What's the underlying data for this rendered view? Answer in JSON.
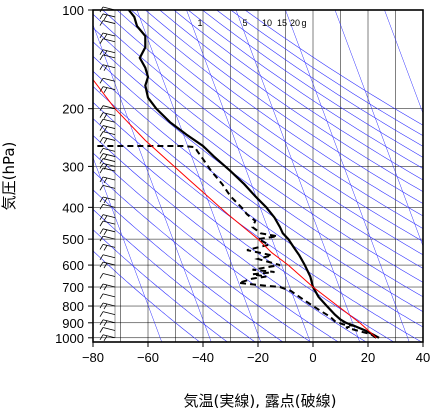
{
  "chart_data": {
    "type": "line",
    "title": "",
    "xlabel": "気温(実線), 露点(破線)",
    "ylabel": "気圧(hPa)",
    "xlim": [
      -80,
      40
    ],
    "ylim": [
      1030,
      100
    ],
    "y_scale": "log",
    "x_ticks": [
      -80,
      -60,
      -40,
      -20,
      0,
      20,
      40
    ],
    "x_tick_labels": [
      "−80",
      "−60",
      "−40",
      "−20",
      "0",
      "20",
      "40"
    ],
    "y_ticks": [
      100,
      200,
      300,
      400,
      500,
      600,
      700,
      800,
      900,
      1000
    ],
    "y_tick_labels": [
      "100",
      "200",
      "300",
      "400",
      "500",
      "600",
      "700",
      "800",
      "900",
      "1000"
    ],
    "mixing_ratio_labels": [
      "1",
      "5",
      "10",
      "15",
      "20",
      "g"
    ],
    "grid": true,
    "series": [
      {
        "role": "temperature",
        "style": "solid",
        "color": "#000000",
        "points": [
          [
            24,
            1000
          ],
          [
            22,
            980
          ],
          [
            19,
            950
          ],
          [
            15,
            920
          ],
          [
            12,
            900
          ],
          [
            10,
            880
          ],
          [
            8,
            850
          ],
          [
            5,
            800
          ],
          [
            2,
            750
          ],
          [
            0,
            700
          ],
          [
            -1,
            650
          ],
          [
            -3,
            600
          ],
          [
            -5,
            560
          ],
          [
            -7,
            530
          ],
          [
            -9,
            500
          ],
          [
            -11,
            480
          ],
          [
            -12,
            460
          ],
          [
            -14,
            430
          ],
          [
            -17,
            400
          ],
          [
            -21,
            370
          ],
          [
            -25,
            340
          ],
          [
            -30,
            310
          ],
          [
            -36,
            280
          ],
          [
            -40,
            260
          ],
          [
            -46,
            240
          ],
          [
            -52,
            220
          ],
          [
            -57,
            200
          ],
          [
            -60,
            185
          ],
          [
            -61,
            170
          ],
          [
            -60,
            160
          ],
          [
            -61,
            150
          ],
          [
            -63,
            140
          ],
          [
            -61,
            130
          ],
          [
            -61,
            120
          ],
          [
            -64,
            112
          ],
          [
            -65,
            105
          ],
          [
            -67,
            100
          ]
        ]
      },
      {
        "role": "dewpoint",
        "style": "dashed",
        "color": "#000000",
        "points": [
          [
            23,
            1000
          ],
          [
            21,
            975
          ],
          [
            16,
            950
          ],
          [
            12,
            930
          ],
          [
            15,
            920
          ],
          [
            11,
            910
          ],
          [
            8,
            890
          ],
          [
            6,
            860
          ],
          [
            3,
            830
          ],
          [
            0,
            800
          ],
          [
            -3,
            770
          ],
          [
            -6,
            740
          ],
          [
            -8,
            720
          ],
          [
            -12,
            700
          ],
          [
            -20,
            690
          ],
          [
            -27,
            680
          ],
          [
            -22,
            660
          ],
          [
            -17,
            650
          ],
          [
            -22,
            640
          ],
          [
            -14,
            630
          ],
          [
            -22,
            620
          ],
          [
            -12,
            600
          ],
          [
            -20,
            575
          ],
          [
            -15,
            560
          ],
          [
            -24,
            540
          ],
          [
            -16,
            520
          ],
          [
            -20,
            500
          ],
          [
            -13,
            490
          ],
          [
            -19,
            480
          ],
          [
            -22,
            460
          ],
          [
            -21,
            440
          ],
          [
            -24,
            420
          ],
          [
            -26,
            400
          ],
          [
            -30,
            370
          ],
          [
            -33,
            340
          ],
          [
            -37,
            310
          ],
          [
            -40,
            285
          ],
          [
            -42,
            270
          ],
          [
            -43,
            262
          ],
          [
            -47,
            260
          ],
          [
            -55,
            260
          ],
          [
            -70,
            260
          ],
          [
            -82,
            260
          ]
        ]
      },
      {
        "role": "parcel",
        "style": "solid",
        "color": "#ff0000",
        "points": [
          [
            23,
            1000
          ],
          [
            17,
            900
          ],
          [
            9,
            800
          ],
          [
            0,
            700
          ],
          [
            -9,
            600
          ],
          [
            -15,
            550
          ],
          [
            -20,
            500
          ],
          [
            -31,
            420
          ],
          [
            -45,
            330
          ],
          [
            -61,
            250
          ],
          [
            -72,
            200
          ],
          [
            -82,
            155
          ]
        ]
      }
    ],
    "wind_barbs": {
      "x": -72,
      "levels": [
        1000,
        950,
        900,
        850,
        800,
        750,
        700,
        650,
        600,
        570,
        530,
        500,
        475,
        450,
        430,
        400,
        380,
        350,
        330,
        310,
        300,
        290,
        280,
        270,
        250,
        240,
        230,
        220,
        210,
        200,
        175,
        165,
        150,
        140,
        135,
        125,
        120,
        110,
        105,
        100
      ]
    }
  }
}
